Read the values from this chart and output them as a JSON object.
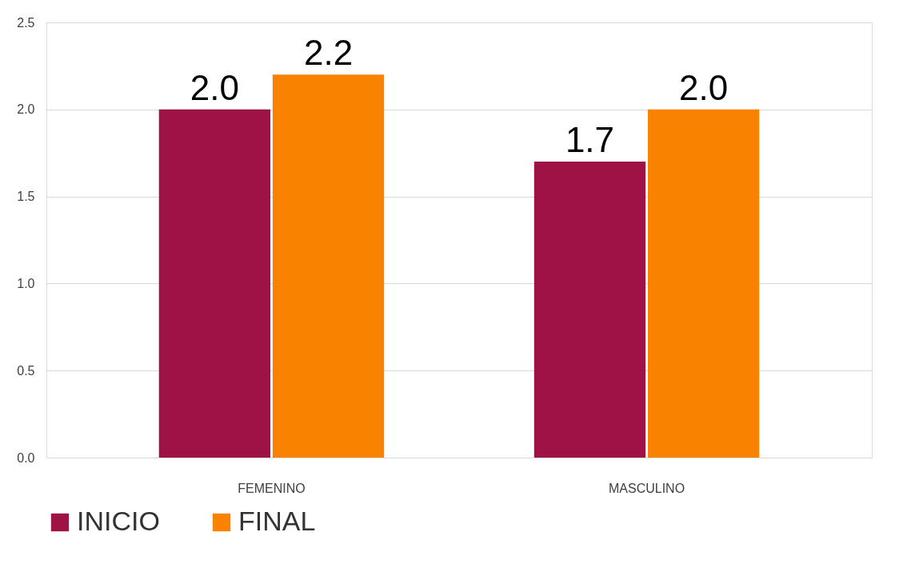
{
  "chart_data": {
    "type": "bar",
    "categories": [
      "FEMENINO",
      "MASCULINO"
    ],
    "series": [
      {
        "name": "INICIO",
        "color": "#9e1245",
        "values": [
          2.0,
          1.7
        ],
        "value_labels": [
          "2.0",
          "1.7"
        ]
      },
      {
        "name": "FINAL",
        "color": "#f98200",
        "values": [
          2.2,
          2.0
        ],
        "value_labels": [
          "2.2",
          "2.0"
        ]
      }
    ],
    "ylim": [
      0,
      2.5
    ],
    "yticks": [
      {
        "value": 0,
        "label": "0.0"
      },
      {
        "value": 0.5,
        "label": "0.5"
      },
      {
        "value": 1,
        "label": "1.0"
      },
      {
        "value": 1.5,
        "label": "1.5"
      },
      {
        "value": 2,
        "label": "2.0"
      },
      {
        "value": 2.5,
        "label": "2.5"
      }
    ],
    "grid": "y",
    "legend": "bottom"
  }
}
